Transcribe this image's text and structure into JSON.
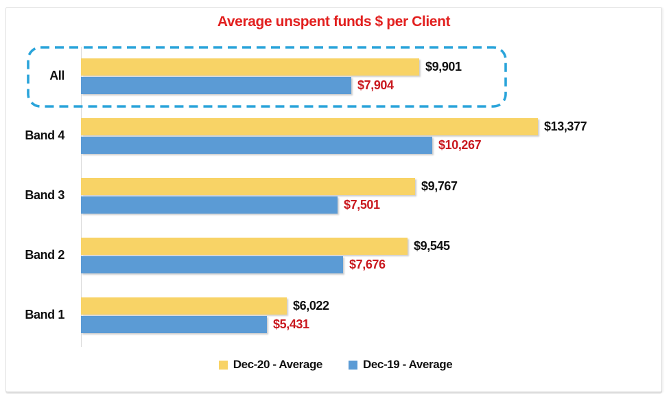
{
  "chart_data": {
    "type": "bar",
    "orientation": "horizontal",
    "title": "Average unspent funds $ per Client",
    "title_color": "#e2201f",
    "categories": [
      "All",
      "Band 4",
      "Band 3",
      "Band 2",
      "Band 1"
    ],
    "series": [
      {
        "name": "Dec-20 - Average",
        "color": "#f8d366",
        "label_color": "#111111",
        "values": [
          9901,
          13377,
          9767,
          9545,
          6022
        ],
        "labels": [
          "$9,901",
          "$13,377",
          "$9,767",
          "$9,545",
          "$6,022"
        ]
      },
      {
        "name": "Dec-19 - Average",
        "color": "#5b9bd5",
        "label_color": "#c9191f",
        "values": [
          7904,
          10267,
          7501,
          7676,
          5431
        ],
        "labels": [
          "$7,904",
          "$10,267",
          "$7,501",
          "$7,676",
          "$5,431"
        ]
      }
    ],
    "xlim": [
      0,
      16900
    ],
    "xlabel": "",
    "ylabel": "",
    "grid": false,
    "legend_position": "bottom",
    "annotations": [
      {
        "type": "highlight-box",
        "target_category": "All",
        "style": "dashed",
        "color": "#2aa4da"
      }
    ]
  }
}
